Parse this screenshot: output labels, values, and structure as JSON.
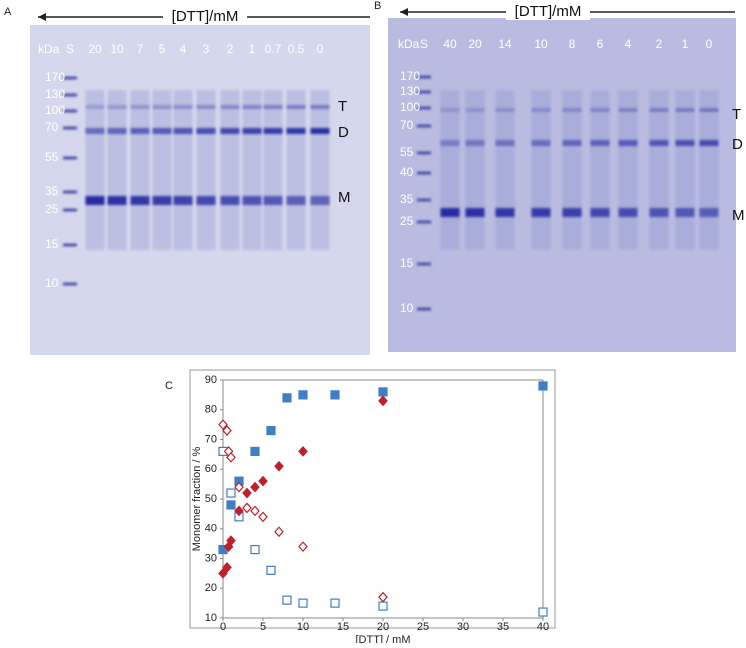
{
  "panel_labels": [
    "A",
    "B",
    "C"
  ],
  "gel_a": {
    "header": "[DTT]/mM",
    "unit": "kDa",
    "lanes": [
      "S",
      "20",
      "10",
      "7",
      "5",
      "4",
      "3",
      "2",
      "1",
      "0.7",
      "0.5",
      "0"
    ],
    "markers": [
      "170",
      "130",
      "100",
      "70",
      "55",
      "35",
      "25",
      "15",
      "10"
    ],
    "bands": [
      "T",
      "D",
      "M"
    ]
  },
  "gel_b": {
    "header": "[DTT]/mM",
    "unit": "kDa",
    "lanes": [
      "S",
      "40",
      "20",
      "14",
      "10",
      "8",
      "6",
      "4",
      "2",
      "1",
      "0"
    ],
    "markers": [
      "170",
      "130",
      "100",
      "70",
      "55",
      "40",
      "35",
      "25",
      "15",
      "10"
    ],
    "bands": [
      "T",
      "D",
      "M"
    ]
  },
  "chart_data": {
    "type": "scatter",
    "xlabel": "[DTT] / mM",
    "ylabel": "Monomer fraction / %",
    "xlim": [
      0,
      40
    ],
    "xticks": [
      0,
      5,
      10,
      15,
      20,
      25,
      30,
      35,
      40
    ],
    "ylim": [
      10,
      90
    ],
    "yticks": [
      10,
      20,
      30,
      40,
      50,
      60,
      70,
      80,
      90
    ],
    "grid": false,
    "series": [
      {
        "color": "#3f7fc4",
        "marker": "square",
        "filled": true,
        "x": [
          0,
          1,
          2,
          4,
          6,
          8,
          10,
          14,
          20,
          40
        ],
        "values": [
          33,
          48,
          56,
          66,
          73,
          84,
          85,
          85,
          86,
          88
        ]
      },
      {
        "color": "#3f7fc4",
        "marker": "square",
        "filled": false,
        "x": [
          0,
          1,
          2,
          4,
          6,
          8,
          10,
          14,
          20,
          40
        ],
        "values": [
          66,
          52,
          44,
          33,
          26,
          16,
          15,
          15,
          14,
          12
        ]
      },
      {
        "color": "#c0202a",
        "marker": "diamond",
        "filled": true,
        "x": [
          0,
          0.5,
          0.7,
          1,
          2,
          3,
          4,
          5,
          7,
          10,
          20
        ],
        "values": [
          25,
          27,
          34,
          36,
          46,
          52,
          54,
          56,
          61,
          66,
          83
        ]
      },
      {
        "color": "#c0202a",
        "marker": "diamond",
        "filled": false,
        "x": [
          0,
          0.5,
          0.7,
          1,
          2,
          3,
          4,
          5,
          7,
          10,
          20
        ],
        "values": [
          75,
          73,
          66,
          64,
          54,
          47,
          46,
          44,
          39,
          34,
          17
        ]
      }
    ]
  }
}
